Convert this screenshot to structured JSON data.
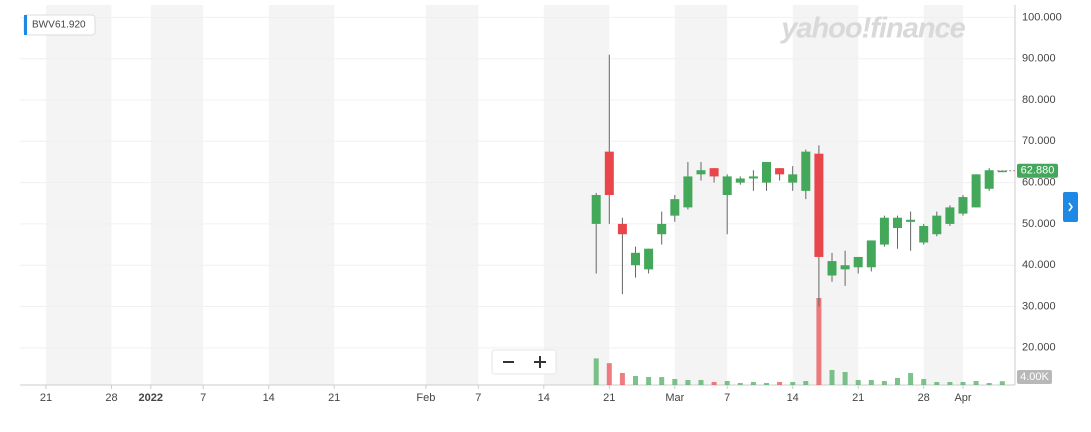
{
  "chart_data": {
    "type": "candlestick",
    "watermark": "yahoo!finance",
    "legend": {
      "symbol": "BWV",
      "value": {
        "value": 61.92,
        "label": "61.920"
      }
    },
    "categories": [
      "21",
      null,
      null,
      null,
      null,
      "28",
      null,
      null,
      "2022",
      null,
      null,
      null,
      "7",
      null,
      null,
      null,
      null,
      "14",
      null,
      null,
      null,
      null,
      "21",
      null,
      null,
      null,
      null,
      null,
      null,
      "Feb",
      null,
      null,
      null,
      "7",
      null,
      null,
      null,
      null,
      "14",
      null,
      null,
      null,
      null,
      "21",
      null,
      null,
      null,
      null,
      "Mar",
      null,
      null,
      null,
      "7",
      null,
      null,
      null,
      null,
      "14",
      null,
      null,
      null,
      null,
      "21",
      null,
      null,
      null,
      null,
      "28",
      null,
      null,
      "Apr",
      null,
      null,
      null
    ],
    "open": [
      null,
      null,
      null,
      null,
      null,
      null,
      null,
      null,
      null,
      null,
      null,
      null,
      null,
      null,
      null,
      null,
      null,
      null,
      null,
      null,
      null,
      null,
      null,
      null,
      null,
      null,
      null,
      null,
      null,
      null,
      null,
      null,
      null,
      null,
      null,
      null,
      null,
      null,
      null,
      null,
      null,
      null,
      50,
      67.5,
      50,
      40,
      39,
      47.5,
      52,
      54,
      62,
      63.5,
      57,
      60,
      61,
      60,
      63.5,
      60,
      58,
      67,
      37.5,
      39,
      39.5,
      39.5,
      45,
      49,
      50.5,
      45.5,
      47.5,
      50,
      52.5,
      54,
      58.5,
      62.88
    ],
    "high": [
      null,
      null,
      null,
      null,
      null,
      null,
      null,
      null,
      null,
      null,
      null,
      null,
      null,
      null,
      null,
      null,
      null,
      null,
      null,
      null,
      null,
      null,
      null,
      null,
      null,
      null,
      null,
      null,
      null,
      null,
      null,
      null,
      null,
      null,
      null,
      null,
      null,
      null,
      null,
      null,
      null,
      null,
      57.5,
      91,
      51.5,
      44.5,
      44,
      53,
      57,
      65,
      65,
      63.5,
      62,
      61.5,
      63,
      65,
      63.5,
      64,
      68,
      69,
      43,
      43.5,
      42,
      46,
      52,
      52,
      53,
      50,
      53,
      54.5,
      57,
      62,
      63.5,
      62.88
    ],
    "low": [
      null,
      null,
      null,
      null,
      null,
      null,
      null,
      null,
      null,
      null,
      null,
      null,
      null,
      null,
      null,
      null,
      null,
      null,
      null,
      null,
      null,
      null,
      null,
      null,
      null,
      null,
      null,
      null,
      null,
      null,
      null,
      null,
      null,
      null,
      null,
      null,
      null,
      null,
      null,
      null,
      null,
      null,
      38,
      50,
      33,
      37,
      38,
      45,
      50.5,
      53.5,
      60.5,
      60,
      47.5,
      59.5,
      58,
      58,
      60.5,
      58,
      56,
      30,
      36,
      35,
      38,
      38.5,
      44.5,
      44,
      43.5,
      45,
      47,
      49.5,
      52,
      54,
      58,
      62.88
    ],
    "close": [
      null,
      null,
      null,
      null,
      null,
      null,
      null,
      null,
      null,
      null,
      null,
      null,
      null,
      null,
      null,
      null,
      null,
      null,
      null,
      null,
      null,
      null,
      null,
      null,
      null,
      null,
      null,
      null,
      null,
      null,
      null,
      null,
      null,
      null,
      null,
      null,
      null,
      null,
      null,
      null,
      null,
      null,
      57,
      57,
      47.5,
      43,
      44,
      50,
      56,
      61.5,
      63,
      61.5,
      61.5,
      61,
      61.5,
      65,
      62,
      62,
      67.5,
      42,
      41,
      40,
      42,
      46,
      51.5,
      51.5,
      51,
      49.5,
      52,
      54,
      56.5,
      62,
      63,
      62.88
    ],
    "volume": [
      null,
      null,
      null,
      null,
      null,
      null,
      null,
      null,
      null,
      null,
      null,
      null,
      null,
      null,
      null,
      null,
      null,
      null,
      null,
      null,
      null,
      null,
      null,
      null,
      null,
      null,
      null,
      null,
      null,
      null,
      null,
      null,
      null,
      null,
      null,
      null,
      null,
      null,
      null,
      null,
      null,
      null,
      28000,
      23000,
      12600,
      9500,
      8400,
      8400,
      6300,
      5300,
      5300,
      3200,
      4200,
      2100,
      3200,
      2100,
      3200,
      3200,
      4200,
      91600,
      15800,
      13700,
      5300,
      5300,
      4200,
      7400,
      12600,
      6300,
      3200,
      3200,
      3200,
      4200,
      2100,
      4000
    ],
    "y2lim": [
      0,
      400000
    ],
    "ylim": [
      11,
      103
    ],
    "yticks": [
      {
        "value": 20,
        "label": "20.000"
      },
      {
        "value": 30,
        "label": "30.000"
      },
      {
        "value": 40,
        "label": "40.000"
      },
      {
        "value": 50,
        "label": "50.000"
      },
      {
        "value": 60,
        "label": "60.000"
      },
      {
        "value": 70,
        "label": "70.000"
      },
      {
        "value": 80,
        "label": "80.000"
      },
      {
        "value": 90,
        "label": "90.000"
      },
      {
        "value": 100,
        "label": "100.000"
      }
    ],
    "last_price": {
      "value": 62.88,
      "label": "62.880"
    },
    "last_volume": {
      "value": 4000,
      "label": "4.00K"
    },
    "up_color": "#43a85a",
    "down_color": "#e8464a",
    "grid": true
  }
}
